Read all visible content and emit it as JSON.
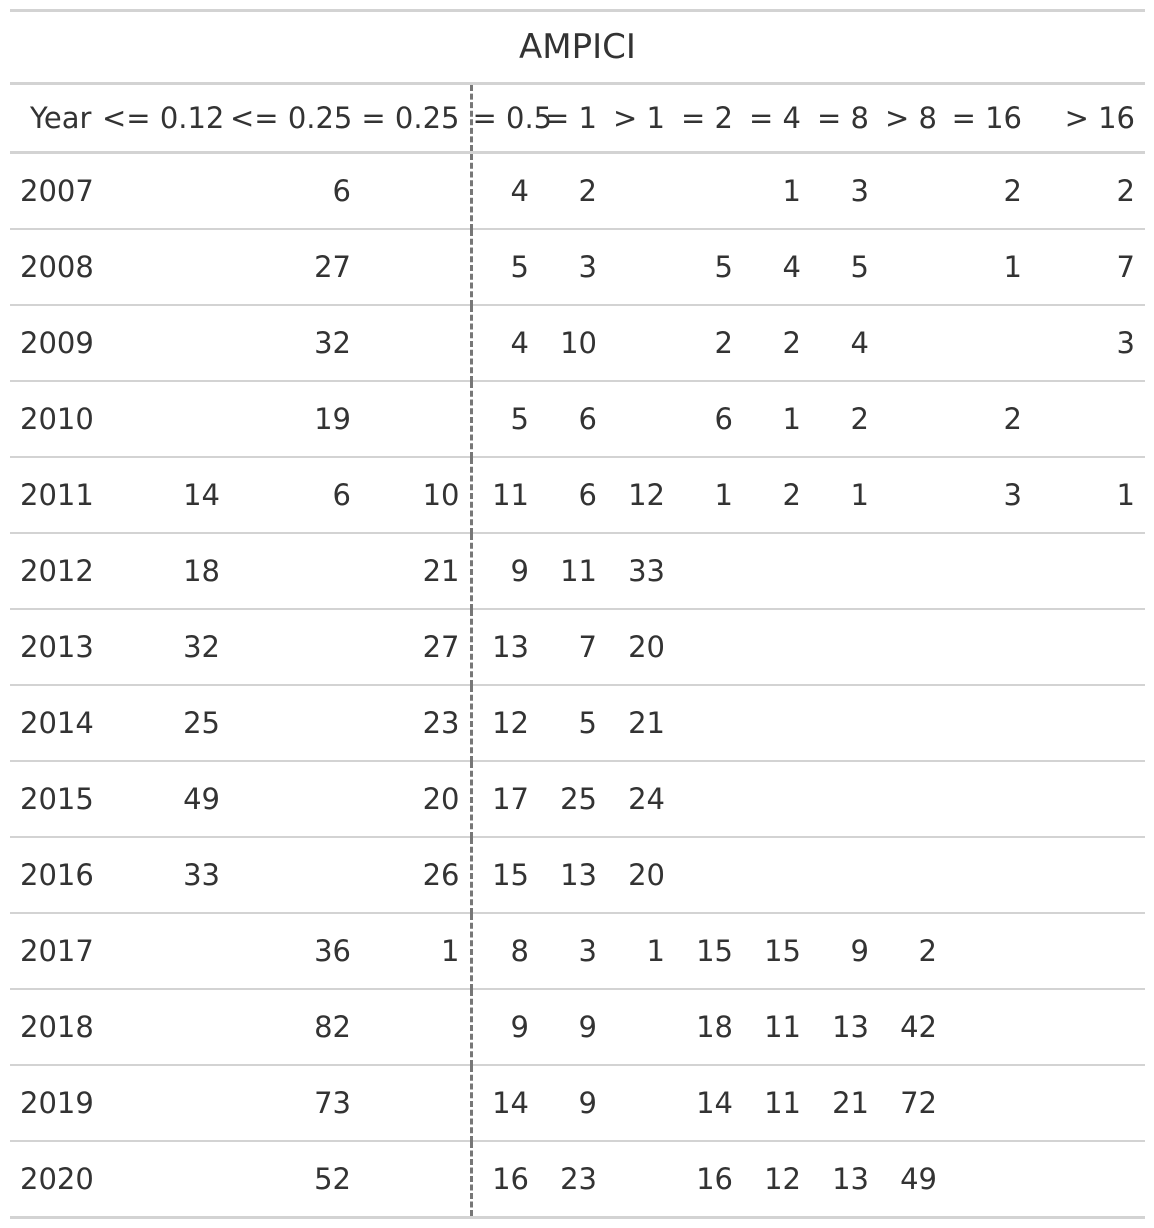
{
  "title": "AMPICI",
  "columns": [
    "Year",
    "<= 0.12",
    "<= 0.25",
    "= 0.25",
    "= 0.5",
    "= 1",
    "> 1",
    "= 2",
    "= 4",
    "= 8",
    "> 8",
    "= 16",
    "> 16"
  ],
  "rows": [
    [
      "2007",
      "",
      "6",
      "",
      "4",
      "2",
      "",
      "",
      "1",
      "3",
      "",
      "2",
      "2"
    ],
    [
      "2008",
      "",
      "27",
      "",
      "5",
      "3",
      "",
      "5",
      "4",
      "5",
      "",
      "1",
      "7"
    ],
    [
      "2009",
      "",
      "32",
      "",
      "4",
      "10",
      "",
      "2",
      "2",
      "4",
      "",
      "",
      "3"
    ],
    [
      "2010",
      "",
      "19",
      "",
      "5",
      "6",
      "",
      "6",
      "1",
      "2",
      "",
      "2",
      ""
    ],
    [
      "2011",
      "14",
      "6",
      "10",
      "11",
      "6",
      "12",
      "1",
      "2",
      "1",
      "",
      "3",
      "1"
    ],
    [
      "2012",
      "18",
      "",
      "21",
      "9",
      "11",
      "33",
      "",
      "",
      "",
      "",
      "",
      ""
    ],
    [
      "2013",
      "32",
      "",
      "27",
      "13",
      "7",
      "20",
      "",
      "",
      "",
      "",
      "",
      ""
    ],
    [
      "2014",
      "25",
      "",
      "23",
      "12",
      "5",
      "21",
      "",
      "",
      "",
      "",
      "",
      ""
    ],
    [
      "2015",
      "49",
      "",
      "20",
      "17",
      "25",
      "24",
      "",
      "",
      "",
      "",
      "",
      ""
    ],
    [
      "2016",
      "33",
      "",
      "26",
      "15",
      "13",
      "20",
      "",
      "",
      "",
      "",
      "",
      ""
    ],
    [
      "2017",
      "",
      "36",
      "1",
      "8",
      "3",
      "1",
      "15",
      "15",
      "9",
      "2",
      "",
      ""
    ],
    [
      "2018",
      "",
      "82",
      "",
      "9",
      "9",
      "",
      "18",
      "11",
      "13",
      "42",
      "",
      ""
    ],
    [
      "2019",
      "",
      "73",
      "",
      "14",
      "9",
      "",
      "14",
      "11",
      "21",
      "72",
      "",
      ""
    ],
    [
      "2020",
      "",
      "52",
      "",
      "16",
      "23",
      "",
      "16",
      "12",
      "13",
      "49",
      "",
      ""
    ]
  ],
  "colors": {
    "text": "#333333",
    "rule": "#d3d3d3",
    "dashed_separator": "#777777"
  }
}
